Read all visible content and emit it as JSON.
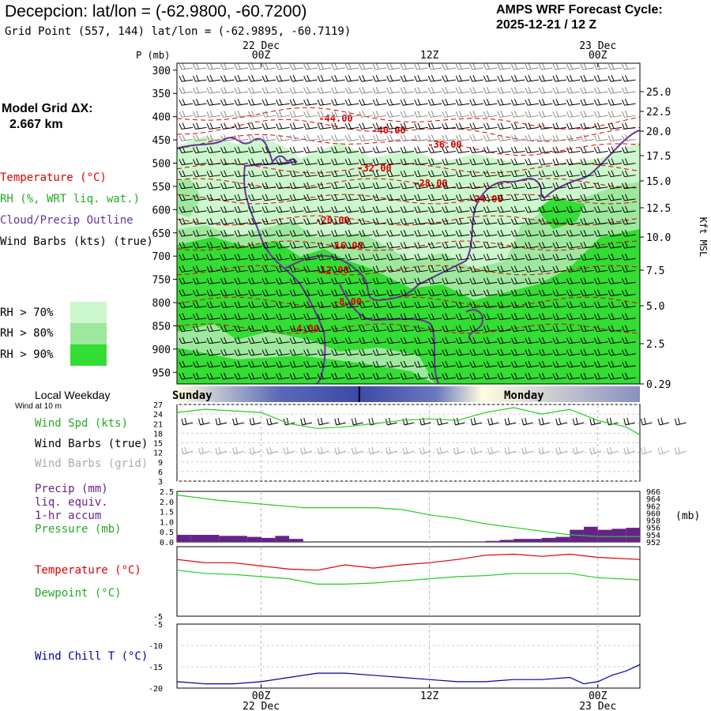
{
  "header": {
    "title": "Decepcion:  lat/lon = (-62.9800, -60.7200)",
    "subtitle": "Grid Point (557, 144) lat/lon = (-62.9895, -60.7119)",
    "cycle_line1": "AMPS WRF Forecast Cycle:",
    "cycle_line2": "2025-12-21 / 12  Z"
  },
  "sidebar": {
    "grid_label": "Model Grid ΔX:",
    "grid_value": "2.667 km",
    "temperature": "Temperature (°C)",
    "rh": "RH (%, WRT liq. wat.)",
    "cloud": "Cloud/Precip Outline",
    "wind_barbs": "Wind Barbs (kts) (true)",
    "rh70": "RH > 70%",
    "rh80": "RH > 80%",
    "rh90": "RH > 90%",
    "local_weekday": "Local Weekday",
    "wind10m": "Wind at 10 m",
    "wind_spd": "Wind Spd (kts)",
    "barbs_true": "Wind Barbs (true)",
    "barbs_grid": "Wind Barbs (grid)",
    "precip1": "Precip (mm)",
    "precip2": "liq. equiv.",
    "precip3": "1-hr accum",
    "pressure": "Pressure (mb)",
    "temp2": "Temperature (°C)",
    "dewpoint": "Dewpoint (°C)",
    "windchill": "Wind Chill T (°C)"
  },
  "colors": {
    "rh70": "#ccf7cc",
    "rh80": "#9ee89e",
    "rh90": "#33dd33",
    "temp": "#dd0000",
    "cloud": "#663399",
    "green": "#22cc22",
    "precip": "#662288",
    "windchill": "#0000aa",
    "barb_grid": "#aaaaaa"
  },
  "chart_data": [
    {
      "type": "heatmap",
      "name": "cross-section",
      "ylabel": "P (mb)",
      "y2label": "Kft MSL",
      "time_ticks": [
        {
          "t": 6,
          "label": "00Z",
          "date": "22 Dec"
        },
        {
          "t": 18,
          "label": "12Z",
          "date": ""
        },
        {
          "t": 30,
          "label": "00Z",
          "date": "23 Dec"
        }
      ],
      "pressure_levels": [
        300,
        350,
        400,
        450,
        500,
        550,
        600,
        650,
        700,
        750,
        800,
        850,
        900,
        950
      ],
      "plim": [
        285,
        975
      ],
      "kft_ticks": [
        "25.0",
        "22.5",
        "20.0",
        "17.5",
        "15.0",
        "12.5",
        "10.0",
        "7.5",
        "5.0",
        "2.5",
        "0.29"
      ],
      "temperature_labels": [
        "-44.00",
        "-40.00",
        "-36.00",
        "-32.00",
        "-28.00",
        "-24.00",
        "-20.00",
        "-16.00",
        "-12.00",
        "-8.00",
        "-4.00"
      ],
      "xlim": [
        0,
        33
      ]
    },
    {
      "type": "line",
      "name": "weekday-bar",
      "labels": [
        "Sunday",
        "Monday"
      ],
      "day_boundary_t": 13
    },
    {
      "type": "line",
      "name": "wind-speed",
      "ylim": [
        3,
        27
      ],
      "yticks": [
        3,
        6,
        9,
        12,
        15,
        18,
        21,
        24,
        27
      ],
      "t": [
        0,
        2,
        4,
        6,
        8,
        10,
        12,
        14,
        16,
        18,
        20,
        22,
        24,
        26,
        28,
        30,
        32,
        33
      ],
      "speed": [
        24.5,
        25.5,
        25,
        24.5,
        21,
        19.5,
        20,
        21,
        22,
        22.5,
        22,
        24.5,
        26,
        24,
        25.5,
        22,
        20,
        17.5
      ]
    },
    {
      "type": "bar",
      "name": "precip-pressure",
      "ylim": [
        0,
        2.5
      ],
      "yticks": [
        "0.0",
        "0.5",
        "1.0",
        "1.5",
        "2.0",
        "2.5"
      ],
      "y2lim": [
        952,
        966
      ],
      "y2ticks": [
        "952",
        "954",
        "956",
        "958",
        "960",
        "962",
        "964",
        "966"
      ],
      "y2label": "(mb)",
      "precip": [
        0.35,
        0.35,
        0.35,
        0.3,
        0.3,
        0.25,
        0.2,
        0.3,
        0.15,
        0,
        0,
        0,
        0,
        0,
        0,
        0,
        0,
        0,
        0,
        0,
        0,
        0,
        0.05,
        0.1,
        0.15,
        0.15,
        0.2,
        0.25,
        0.6,
        0.75,
        0.6,
        0.65,
        0.7
      ],
      "pressure_t": [
        0,
        1,
        3,
        6,
        9,
        12,
        14,
        16,
        18,
        20,
        22,
        24,
        26,
        28,
        30,
        33
      ],
      "pressure": [
        965,
        964.5,
        963.5,
        962.5,
        961.5,
        961.5,
        961.5,
        961,
        959.5,
        958.5,
        957,
        956,
        955,
        954,
        953.5,
        953.5
      ]
    },
    {
      "type": "line",
      "name": "temp-dewpoint",
      "ylim": [
        -5,
        1.5
      ],
      "yticks": [
        "-5"
      ],
      "t": [
        0,
        2,
        4,
        6,
        8,
        10,
        12,
        14,
        16,
        18,
        20,
        22,
        24,
        26,
        28,
        30,
        33
      ],
      "temperature": [
        0.3,
        0,
        0,
        -0.3,
        -0.6,
        -0.7,
        -0.2,
        -0.5,
        -0.2,
        0,
        0.3,
        0.7,
        0.8,
        0.6,
        0.8,
        0.5,
        0.3
      ],
      "dewpoint": [
        -0.7,
        -1,
        -1.1,
        -1.3,
        -1.5,
        -2.0,
        -2.0,
        -1.9,
        -1.7,
        -1.5,
        -1.3,
        -1.2,
        -1.0,
        -1.0,
        -1.0,
        -1.4,
        -1.6
      ]
    },
    {
      "type": "line",
      "name": "wind-chill",
      "ylim": [
        -20,
        -5
      ],
      "yticks": [
        "-5",
        "-10",
        "-15",
        "-20"
      ],
      "t": [
        0,
        2,
        4,
        6,
        8,
        10,
        12,
        14,
        16,
        18,
        20,
        22,
        24,
        26,
        28,
        29,
        30,
        31,
        32,
        33
      ],
      "windchill": [
        -18.5,
        -19,
        -19,
        -18.5,
        -17.5,
        -16.5,
        -16.5,
        -17,
        -17.5,
        -18,
        -18.5,
        -18.5,
        -18,
        -18,
        -17.5,
        -19,
        -18.5,
        -17,
        -16,
        -14.5
      ]
    }
  ]
}
